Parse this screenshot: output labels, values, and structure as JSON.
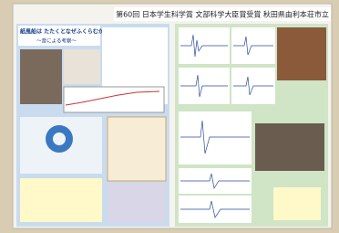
{
  "header": {
    "title": "第60回 日本学生科学賞 文部科学大臣賞受賞 秋田県由利本荘市立"
  },
  "left_panel": {
    "title": "紙風船は たたくとなぜふくらむか",
    "subtitle": "～音による考察～"
  }
}
